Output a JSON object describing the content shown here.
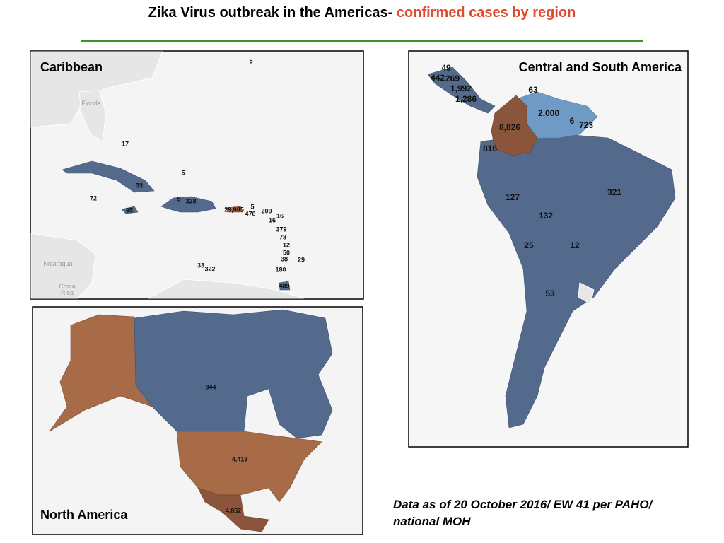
{
  "header": {
    "title": "Zika Virus outbreak in the Americas-",
    "title_highlight": "confirmed cases by region"
  },
  "panels": [
    {
      "title": "Caribbean",
      "labels": [
        "5",
        "17",
        "5",
        "33",
        "72",
        "95",
        "5",
        "328",
        "29,085",
        "5",
        "470",
        "200",
        "16",
        "16",
        "379",
        "78",
        "12",
        "50",
        "38",
        "29",
        "33",
        "322",
        "180",
        "489"
      ],
      "places": [
        "Florida",
        "Nicaragua",
        "Costa",
        "Rica"
      ]
    },
    {
      "title": "Central and South America",
      "labels": [
        "49",
        "442",
        "269",
        "1,992",
        "1,286",
        "63",
        "2,000",
        "6",
        "723",
        "8,826",
        "816",
        "127",
        "321",
        "132",
        "25",
        "12",
        "53"
      ]
    },
    {
      "title": "North America",
      "labels": [
        "344",
        "4,413",
        "4,852"
      ]
    }
  ],
  "footnote": [
    "Data as of 20 October 2016/ EW 41 per PAHO/",
    "national MOH"
  ]
}
